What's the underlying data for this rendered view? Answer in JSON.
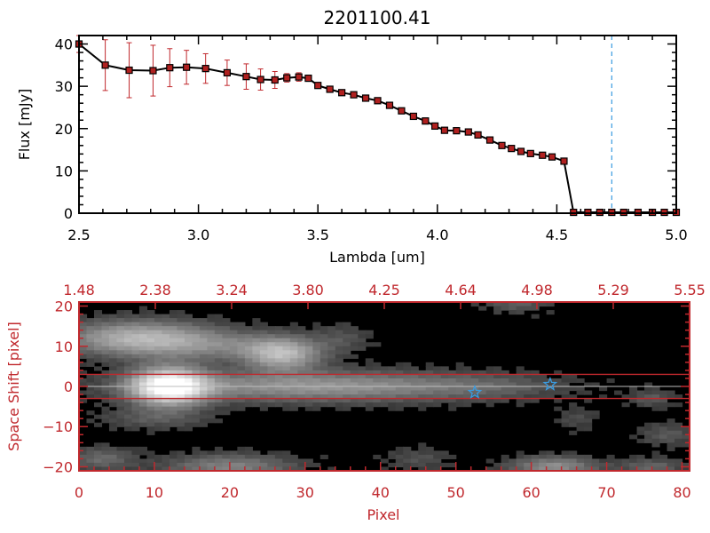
{
  "chart_data": [
    {
      "type": "line",
      "title": "2201100.41",
      "xlabel": "Lambda [um]",
      "ylabel": "Flux [mJy]",
      "xlim": [
        2.5,
        5.0
      ],
      "ylim": [
        0,
        42
      ],
      "xticks": [
        "2.5",
        "3.0",
        "3.5",
        "4.0",
        "4.5",
        "5.0"
      ],
      "yticks": [
        "0",
        "10",
        "20",
        "30",
        "40"
      ],
      "reference_line_x": 4.73,
      "reference_line_color": "#3a9be0",
      "line_color": "#000000",
      "marker_color": "#b0201f",
      "errorbar_color": "#c0282d",
      "series": [
        {
          "x": [
            2.5,
            2.61,
            2.71,
            2.81,
            2.88,
            2.95,
            3.03,
            3.12,
            3.2,
            3.26,
            3.32,
            3.37,
            3.42,
            3.46,
            3.5,
            3.55,
            3.6,
            3.65,
            3.7,
            3.75,
            3.8,
            3.85,
            3.9,
            3.95,
            3.99,
            4.03,
            4.08,
            4.13,
            4.17,
            4.22,
            4.27,
            4.31,
            4.35,
            4.39,
            4.44,
            4.48,
            4.53,
            4.57,
            4.63,
            4.68,
            4.73,
            4.78,
            4.84,
            4.9,
            4.95,
            5.0
          ],
          "y": [
            40,
            35,
            33.8,
            33.7,
            34.4,
            34.5,
            34.2,
            33.2,
            32.3,
            31.6,
            31.5,
            32.0,
            32.2,
            31.9,
            30.2,
            29.3,
            28.5,
            28.0,
            27.2,
            26.6,
            25.5,
            24.2,
            22.9,
            21.8,
            20.6,
            19.6,
            19.5,
            19.2,
            18.5,
            17.3,
            16.0,
            15.3,
            14.6,
            14.1,
            13.7,
            13.3,
            12.3,
            0.2,
            0.2,
            0.2,
            0.2,
            0.2,
            0.2,
            0.2,
            0.2,
            0.2
          ],
          "err": [
            2,
            6,
            6.5,
            6,
            4.5,
            4,
            3.5,
            3,
            3,
            2.5,
            2,
            1,
            1,
            0.5,
            0.5,
            0.5,
            0.5,
            0.5,
            0.5,
            0.5,
            0.5,
            0.5,
            0.5,
            0.5,
            0.5,
            0.5,
            0.5,
            0.5,
            0.5,
            0.5,
            0.5,
            0.5,
            0.5,
            0.5,
            0.5,
            0.5,
            0.5,
            0.3,
            0.3,
            0.3,
            0.3,
            0.3,
            0.3,
            0.3,
            0.3,
            0.3
          ]
        }
      ]
    },
    {
      "type": "heatmap",
      "xlabel": "Pixel",
      "ylabel": "Space Shift [pixel]",
      "xlim": [
        0,
        81
      ],
      "ylim": [
        -21,
        21
      ],
      "xticks": [
        "0",
        "10",
        "20",
        "30",
        "40",
        "50",
        "60",
        "70",
        "80"
      ],
      "yticks": [
        "−20",
        "−10",
        "0",
        "10",
        "20"
      ],
      "top_ticks": [
        "1.48",
        "2.38",
        "3.24",
        "3.80",
        "4.25",
        "4.64",
        "4.98",
        "5.29",
        "5.55"
      ],
      "extraction_aperture_y": [
        -3,
        3
      ],
      "axis_color": "#c0282d",
      "star_color": "#3a9be0",
      "stars": [
        {
          "x": 52.5,
          "y": -1.5
        },
        {
          "x": 62.5,
          "y": 0.5
        }
      ],
      "blobs": [
        {
          "x": 12,
          "y": 0,
          "sx": 3.5,
          "sy": 3.2,
          "a": 1.0
        },
        {
          "x": 32,
          "y": 0,
          "sx": 16,
          "sy": 2.6,
          "a": 0.42
        },
        {
          "x": 55,
          "y": 0,
          "sx": 6,
          "sy": 2,
          "a": 0.08
        },
        {
          "x": 8,
          "y": 12,
          "sx": 7,
          "sy": 3,
          "a": 0.55
        },
        {
          "x": 19,
          "y": 10,
          "sx": 7,
          "sy": 2.5,
          "a": 0.22
        },
        {
          "x": 27,
          "y": 8,
          "sx": 3.5,
          "sy": 2.8,
          "a": 0.55
        },
        {
          "x": 35,
          "y": 12,
          "sx": 2.5,
          "sy": 2.5,
          "a": 0.12
        },
        {
          "x": 58,
          "y": 21,
          "sx": 3,
          "sy": 1.8,
          "a": 0.18
        },
        {
          "x": 20,
          "y": -20,
          "sx": 6,
          "sy": 2.2,
          "a": 0.32
        },
        {
          "x": 63,
          "y": -20,
          "sx": 4,
          "sy": 1.8,
          "a": 0.38
        },
        {
          "x": 76,
          "y": -20,
          "sx": 3,
          "sy": 1.5,
          "a": 0.2
        },
        {
          "x": 3,
          "y": -18,
          "sx": 3,
          "sy": 2,
          "a": 0.22
        },
        {
          "x": 10,
          "y": -8,
          "sx": 5,
          "sy": 1.8,
          "a": 0.15
        },
        {
          "x": 45,
          "y": -18,
          "sx": 3,
          "sy": 2,
          "a": 0.12
        },
        {
          "x": 76,
          "y": -3,
          "sx": 2,
          "sy": 1.5,
          "a": 0.15
        },
        {
          "x": 78,
          "y": -12,
          "sx": 2.5,
          "sy": 2,
          "a": 0.15
        },
        {
          "x": 66,
          "y": -8,
          "sx": 2,
          "sy": 2,
          "a": 0.1
        }
      ]
    }
  ]
}
